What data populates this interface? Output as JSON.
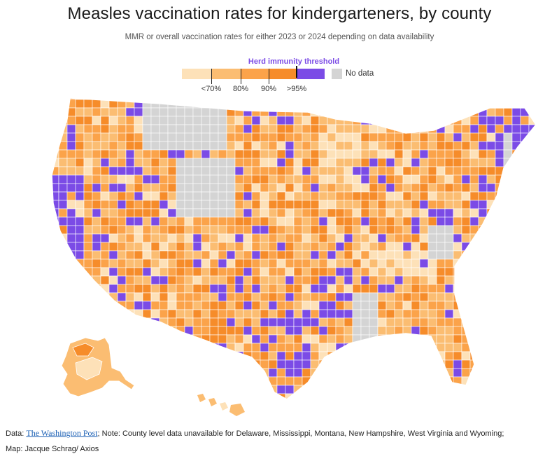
{
  "title": "Measles vaccination rates for kindergarteners, by county",
  "subtitle": "MMR or overall vaccination rates for either 2023 or 2024 depending on data availability",
  "legend": {
    "threshold_label": "Herd immunity threshold",
    "bins": [
      {
        "color": "#fde1b8"
      },
      {
        "color": "#fbbd72"
      },
      {
        "color": "#fba34a"
      },
      {
        "color": "#f68c2a"
      },
      {
        "color": "#7b4be6"
      }
    ],
    "tick_labels": [
      "<70%",
      "80%",
      "90%",
      ">95%"
    ],
    "no_data_label": "No data",
    "no_data_color": "#d4d4d4"
  },
  "map": {
    "region": "United States counties",
    "no_data_states": [
      "Delaware",
      "Mississippi",
      "Montana",
      "New Hampshire",
      "West Virginia",
      "Wyoming"
    ],
    "colors": {
      "lightest": "#fde1b8",
      "light": "#fbbd72",
      "mid": "#fba34a",
      "dark": "#f68c2a",
      "purple": "#7b4be6",
      "nodata": "#d4d4d4"
    }
  },
  "footer": {
    "data_prefix": "Data: ",
    "source_link": "The Washington Post",
    "note": "; Note: County level data unavailable for Delaware, Mississippi, Montana, New Hampshire, West Virginia and Wyoming;",
    "credit": "Map: Jacque Schrag/ Axios"
  }
}
